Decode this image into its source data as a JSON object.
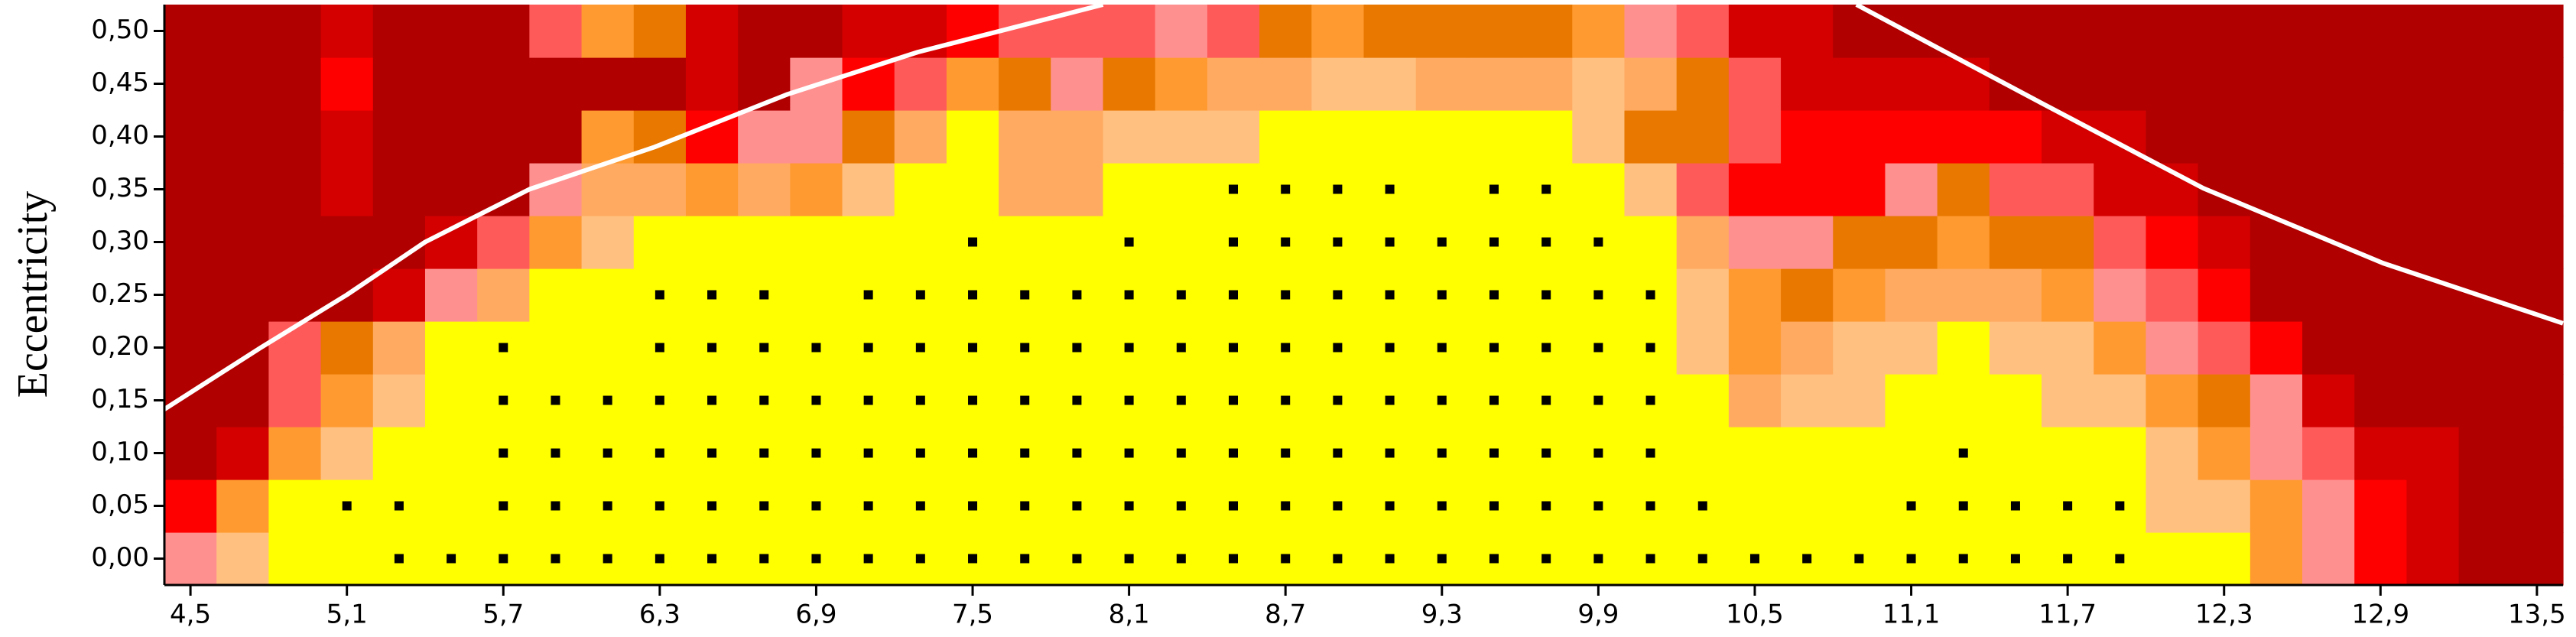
{
  "chart_data": {
    "type": "heatmap",
    "y_label": "Eccentricity",
    "xlim": [
      4.4,
      13.6
    ],
    "ylim": [
      -0.025,
      0.525
    ],
    "x": [
      4.5,
      4.7,
      4.9,
      5.1,
      5.3,
      5.5,
      5.7,
      5.9,
      6.1,
      6.3,
      6.5,
      6.7,
      6.9,
      7.1,
      7.3,
      7.5,
      7.7,
      7.9,
      8.1,
      8.3,
      8.5,
      8.7,
      8.9,
      9.1,
      9.3,
      9.5,
      9.7,
      9.9,
      10.1,
      10.3,
      10.5,
      10.7,
      10.9,
      11.1,
      11.3,
      11.5,
      11.7,
      11.9,
      12.1,
      12.3,
      12.5,
      12.7,
      12.9,
      13.1,
      13.3,
      13.5
    ],
    "y": [
      0,
      0.05,
      0.1,
      0.15,
      0.2,
      0.25,
      0.3,
      0.35,
      0.4,
      0.45,
      0.5
    ],
    "xticks": [
      {
        "value": 4.5,
        "label": "4,5"
      },
      {
        "value": 5.1,
        "label": "5,1"
      },
      {
        "value": 5.7,
        "label": "5,7"
      },
      {
        "value": 6.3,
        "label": "6,3"
      },
      {
        "value": 6.9,
        "label": "6,9"
      },
      {
        "value": 7.5,
        "label": "7,5"
      },
      {
        "value": 8.1,
        "label": "8,1"
      },
      {
        "value": 8.7,
        "label": "8,7"
      },
      {
        "value": 9.3,
        "label": "9,3"
      },
      {
        "value": 9.9,
        "label": "9,9"
      },
      {
        "value": 10.5,
        "label": "10,5"
      },
      {
        "value": 11.1,
        "label": "11,1"
      },
      {
        "value": 11.7,
        "label": "11,7"
      },
      {
        "value": 12.3,
        "label": "12,3"
      },
      {
        "value": 12.9,
        "label": "12,9"
      },
      {
        "value": 13.5,
        "label": "13,5"
      }
    ],
    "yticks": [
      {
        "value": 0,
        "label": "0,00"
      },
      {
        "value": 0.05,
        "label": "0,05"
      },
      {
        "value": 0.1,
        "label": "0,10"
      },
      {
        "value": 0.15,
        "label": "0,15"
      },
      {
        "value": 0.2,
        "label": "0,20"
      },
      {
        "value": 0.25,
        "label": "0,25"
      },
      {
        "value": 0.3,
        "label": "0,30"
      },
      {
        "value": 0.35,
        "label": "0,35"
      },
      {
        "value": 0.4,
        "label": "0,40"
      },
      {
        "value": 0.45,
        "label": "0,45"
      },
      {
        "value": 0.5,
        "label": "0,50"
      }
    ],
    "colors": [
      "#ffff00",
      "#ffc080",
      "#ffaa60",
      "#ff9a30",
      "#e87800",
      "#ff9090",
      "#ff5a5a",
      "#ff0000",
      "#d40000",
      "#b00000"
    ],
    "z": [
      [
        5,
        1,
        0,
        0,
        0,
        0,
        0,
        0,
        0,
        0,
        0,
        0,
        0,
        0,
        0,
        0,
        0,
        0,
        0,
        0,
        0,
        0,
        0,
        0,
        0,
        0,
        0,
        0,
        0,
        0,
        0,
        0,
        0,
        0,
        0,
        0,
        0,
        0,
        0,
        0,
        3,
        5,
        7,
        8,
        9,
        9
      ],
      [
        7,
        3,
        0,
        0,
        0,
        0,
        0,
        0,
        0,
        0,
        0,
        0,
        0,
        0,
        0,
        0,
        0,
        0,
        0,
        0,
        0,
        0,
        0,
        0,
        0,
        0,
        0,
        0,
        0,
        0,
        0,
        0,
        0,
        0,
        0,
        0,
        0,
        0,
        1,
        1,
        3,
        5,
        7,
        8,
        9,
        9
      ],
      [
        9,
        8,
        3,
        1,
        0,
        0,
        0,
        0,
        0,
        0,
        0,
        0,
        0,
        0,
        0,
        0,
        0,
        0,
        0,
        0,
        0,
        0,
        0,
        0,
        0,
        0,
        0,
        0,
        0,
        0,
        0,
        0,
        0,
        0,
        0,
        0,
        0,
        0,
        1,
        3,
        5,
        6,
        8,
        8,
        9,
        9
      ],
      [
        9,
        9,
        6,
        3,
        1,
        0,
        0,
        0,
        0,
        0,
        0,
        0,
        0,
        0,
        0,
        0,
        0,
        0,
        0,
        0,
        0,
        0,
        0,
        0,
        0,
        0,
        0,
        0,
        0,
        0,
        2,
        1,
        1,
        0,
        0,
        0,
        1,
        1,
        3,
        4,
        5,
        8,
        9,
        9,
        9,
        9
      ],
      [
        9,
        9,
        6,
        4,
        2,
        0,
        0,
        0,
        0,
        0,
        0,
        0,
        0,
        0,
        0,
        0,
        0,
        0,
        0,
        0,
        0,
        0,
        0,
        0,
        0,
        0,
        0,
        0,
        0,
        1,
        3,
        2,
        1,
        1,
        0,
        1,
        1,
        3,
        5,
        6,
        7,
        9,
        9,
        9,
        9,
        9
      ],
      [
        9,
        9,
        9,
        9,
        8,
        5,
        2,
        0,
        0,
        0,
        0,
        0,
        0,
        0,
        0,
        0,
        0,
        0,
        0,
        0,
        0,
        0,
        0,
        0,
        0,
        0,
        0,
        0,
        0,
        1,
        3,
        4,
        3,
        2,
        2,
        2,
        3,
        5,
        6,
        7,
        9,
        9,
        9,
        9,
        9,
        9
      ],
      [
        9,
        9,
        9,
        9,
        9,
        8,
        6,
        3,
        1,
        0,
        0,
        0,
        0,
        0,
        0,
        0,
        0,
        0,
        0,
        0,
        0,
        0,
        0,
        0,
        0,
        0,
        0,
        0,
        0,
        2,
        5,
        5,
        4,
        4,
        3,
        4,
        4,
        6,
        7,
        8,
        9,
        9,
        9,
        9,
        9,
        9
      ],
      [
        9,
        9,
        9,
        8,
        9,
        9,
        9,
        5,
        2,
        2,
        3,
        2,
        3,
        1,
        0,
        0,
        2,
        2,
        0,
        0,
        0,
        0,
        0,
        0,
        0,
        0,
        0,
        0,
        1,
        6,
        7,
        7,
        7,
        5,
        4,
        6,
        6,
        8,
        8,
        9,
        9,
        9,
        9,
        9,
        9,
        9
      ],
      [
        9,
        9,
        9,
        8,
        9,
        9,
        9,
        9,
        3,
        4,
        7,
        5,
        5,
        4,
        2,
        0,
        2,
        2,
        1,
        1,
        1,
        0,
        0,
        0,
        0,
        0,
        0,
        1,
        4,
        4,
        6,
        7,
        7,
        7,
        7,
        7,
        8,
        8,
        9,
        9,
        9,
        9,
        9,
        9,
        9,
        9
      ],
      [
        9,
        9,
        9,
        7,
        9,
        9,
        9,
        9,
        9,
        9,
        8,
        9,
        5,
        7,
        6,
        3,
        4,
        5,
        4,
        3,
        2,
        2,
        1,
        1,
        2,
        2,
        2,
        1,
        2,
        4,
        6,
        8,
        8,
        8,
        8,
        9,
        9,
        9,
        9,
        9,
        9,
        9,
        9,
        9,
        9,
        9
      ],
      [
        9,
        9,
        9,
        8,
        9,
        9,
        9,
        6,
        3,
        4,
        8,
        9,
        9,
        8,
        8,
        7,
        6,
        6,
        6,
        5,
        6,
        4,
        3,
        4,
        4,
        4,
        4,
        3,
        5,
        6,
        8,
        8,
        9,
        9,
        9,
        9,
        9,
        9,
        9,
        9,
        9,
        9,
        9,
        9,
        9,
        9
      ]
    ],
    "marker_color": "#000000",
    "markers": [
      [
        0,
        0,
        0,
        0,
        1,
        1,
        1,
        1,
        1,
        1,
        1,
        1,
        1,
        1,
        1,
        1,
        1,
        1,
        1,
        1,
        1,
        1,
        1,
        1,
        1,
        1,
        1,
        1,
        1,
        1,
        1,
        1,
        1,
        1,
        1,
        1,
        1,
        1,
        0,
        0,
        0,
        0,
        0,
        0,
        0,
        0
      ],
      [
        0,
        0,
        0,
        1,
        1,
        0,
        1,
        1,
        1,
        1,
        1,
        1,
        1,
        1,
        1,
        1,
        1,
        1,
        1,
        1,
        1,
        1,
        1,
        1,
        1,
        1,
        1,
        1,
        1,
        1,
        0,
        0,
        0,
        1,
        1,
        1,
        1,
        1,
        0,
        0,
        0,
        0,
        0,
        0,
        0,
        0
      ],
      [
        0,
        0,
        0,
        0,
        0,
        0,
        1,
        1,
        1,
        1,
        1,
        1,
        1,
        1,
        1,
        1,
        1,
        1,
        1,
        1,
        1,
        1,
        1,
        1,
        1,
        1,
        1,
        1,
        1,
        0,
        0,
        0,
        0,
        0,
        1,
        0,
        0,
        0,
        0,
        0,
        0,
        0,
        0,
        0,
        0,
        0
      ],
      [
        0,
        0,
        0,
        0,
        0,
        0,
        1,
        1,
        1,
        1,
        1,
        1,
        1,
        1,
        1,
        1,
        1,
        1,
        1,
        1,
        1,
        1,
        1,
        1,
        1,
        1,
        1,
        1,
        1,
        0,
        0,
        0,
        0,
        0,
        0,
        0,
        0,
        0,
        0,
        0,
        0,
        0,
        0,
        0,
        0,
        0
      ],
      [
        0,
        0,
        0,
        0,
        0,
        0,
        1,
        0,
        0,
        1,
        1,
        1,
        1,
        1,
        1,
        1,
        1,
        1,
        1,
        1,
        1,
        1,
        1,
        1,
        1,
        1,
        1,
        1,
        1,
        0,
        0,
        0,
        0,
        0,
        0,
        0,
        0,
        0,
        0,
        0,
        0,
        0,
        0,
        0,
        0,
        0
      ],
      [
        0,
        0,
        0,
        0,
        0,
        0,
        0,
        0,
        0,
        1,
        1,
        1,
        0,
        1,
        1,
        1,
        1,
        1,
        1,
        1,
        1,
        1,
        1,
        1,
        1,
        1,
        1,
        1,
        1,
        0,
        0,
        0,
        0,
        0,
        0,
        0,
        0,
        0,
        0,
        0,
        0,
        0,
        0,
        0,
        0,
        0
      ],
      [
        0,
        0,
        0,
        0,
        0,
        0,
        0,
        0,
        0,
        0,
        0,
        0,
        0,
        0,
        0,
        1,
        0,
        0,
        1,
        0,
        1,
        1,
        1,
        1,
        1,
        1,
        1,
        1,
        0,
        0,
        0,
        0,
        0,
        0,
        0,
        0,
        0,
        0,
        0,
        0,
        0,
        0,
        0,
        0,
        0,
        0
      ],
      [
        0,
        0,
        0,
        0,
        0,
        0,
        0,
        0,
        0,
        0,
        0,
        0,
        0,
        0,
        0,
        0,
        0,
        0,
        0,
        0,
        1,
        1,
        1,
        1,
        0,
        1,
        1,
        0,
        0,
        0,
        0,
        0,
        0,
        0,
        0,
        0,
        0,
        0,
        0,
        0,
        0,
        0,
        0,
        0,
        0,
        0
      ],
      [
        0,
        0,
        0,
        0,
        0,
        0,
        0,
        0,
        0,
        0,
        0,
        0,
        0,
        0,
        0,
        0,
        0,
        0,
        0,
        0,
        0,
        0,
        0,
        0,
        0,
        0,
        0,
        0,
        0,
        0,
        0,
        0,
        0,
        0,
        0,
        0,
        0,
        0,
        0,
        0,
        0,
        0,
        0,
        0,
        0,
        0
      ],
      [
        0,
        0,
        0,
        0,
        0,
        0,
        0,
        0,
        0,
        0,
        0,
        0,
        0,
        0,
        0,
        0,
        0,
        0,
        0,
        0,
        0,
        0,
        0,
        0,
        0,
        0,
        0,
        0,
        0,
        0,
        0,
        0,
        0,
        0,
        0,
        0,
        0,
        0,
        0,
        0,
        0,
        0,
        0,
        0,
        0,
        0
      ],
      [
        0,
        0,
        0,
        0,
        0,
        0,
        0,
        0,
        0,
        0,
        0,
        0,
        0,
        0,
        0,
        0,
        0,
        0,
        0,
        0,
        0,
        0,
        0,
        0,
        0,
        0,
        0,
        0,
        0,
        0,
        0,
        0,
        0,
        0,
        0,
        0,
        0,
        0,
        0,
        0,
        0,
        0,
        0,
        0,
        0,
        0
      ]
    ],
    "curves": [
      {
        "color": "#ffffff",
        "x": [
          4.39,
          4.77,
          5.1,
          5.4,
          5.8,
          6.28,
          6.79,
          7.29,
          8.0
        ],
        "y": [
          0.14,
          0.2,
          0.25,
          0.3,
          0.35,
          0.39,
          0.44,
          0.48,
          0.525
        ]
      },
      {
        "color": "#ffffff",
        "x": [
          10.89,
          11.59,
          12.22,
          12.91,
          13.6
        ],
        "y": [
          0.525,
          0.433,
          0.351,
          0.28,
          0.223
        ]
      }
    ]
  }
}
